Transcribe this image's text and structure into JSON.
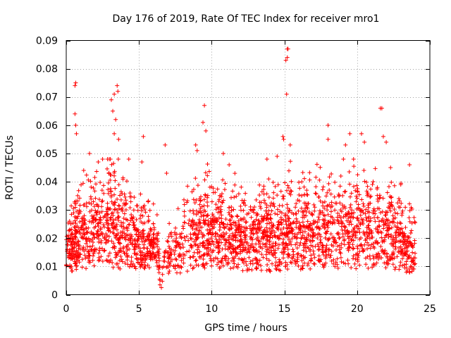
{
  "chart_data": {
    "type": "scatter",
    "title": "Day 176 of 2019, Rate Of TEC Index for receiver mro1",
    "xlabel": "GPS time / hours",
    "ylabel": "ROTI / TECUs",
    "xlim": [
      0,
      25
    ],
    "ylim": [
      0,
      0.09
    ],
    "xticks": [
      0,
      5,
      10,
      15,
      20,
      25
    ],
    "xtick_labels": [
      "0",
      "5",
      "10",
      "15",
      "20",
      "25"
    ],
    "yticks": [
      0,
      0.01,
      0.02,
      0.03,
      0.04,
      0.05,
      0.06,
      0.07,
      0.08,
      0.09
    ],
    "ytick_labels": [
      "0",
      "0.01",
      "0.02",
      "0.03",
      "0.04",
      "0.05",
      "0.06",
      "0.07",
      "0.08",
      "0.09"
    ],
    "grid": true,
    "marker": "plus",
    "color": "#ff0000",
    "density_profile": [
      {
        "x": 0.0,
        "y_center": 0.013,
        "y_spread": 0.008
      },
      {
        "x": 1.0,
        "y_center": 0.016,
        "y_spread": 0.012
      },
      {
        "x": 2.0,
        "y_center": 0.018,
        "y_spread": 0.013
      },
      {
        "x": 3.0,
        "y_center": 0.02,
        "y_spread": 0.016
      },
      {
        "x": 4.0,
        "y_center": 0.017,
        "y_spread": 0.014
      },
      {
        "x": 5.0,
        "y_center": 0.015,
        "y_spread": 0.01
      },
      {
        "x": 6.3,
        "y_center": 0.014,
        "y_spread": 0.008
      },
      {
        "x": 6.5,
        "y_center": 0.0,
        "y_spread": 0.0
      },
      {
        "x": 6.7,
        "y_center": 0.01,
        "y_spread": 0.005
      },
      {
        "x": 8.0,
        "y_center": 0.014,
        "y_spread": 0.01
      },
      {
        "x": 9.3,
        "y_center": 0.018,
        "y_spread": 0.014
      },
      {
        "x": 11.0,
        "y_center": 0.016,
        "y_spread": 0.012
      },
      {
        "x": 13.0,
        "y_center": 0.015,
        "y_spread": 0.011
      },
      {
        "x": 15.0,
        "y_center": 0.017,
        "y_spread": 0.014
      },
      {
        "x": 17.0,
        "y_center": 0.017,
        "y_spread": 0.013
      },
      {
        "x": 19.0,
        "y_center": 0.018,
        "y_spread": 0.014
      },
      {
        "x": 21.0,
        "y_center": 0.017,
        "y_spread": 0.013
      },
      {
        "x": 22.5,
        "y_center": 0.016,
        "y_spread": 0.012
      },
      {
        "x": 24.0,
        "y_center": 0.012,
        "y_spread": 0.008
      }
    ],
    "notable_points": [
      {
        "x": 0.6,
        "y": 0.074
      },
      {
        "x": 0.65,
        "y": 0.075
      },
      {
        "x": 0.6,
        "y": 0.064
      },
      {
        "x": 0.65,
        "y": 0.06
      },
      {
        "x": 0.7,
        "y": 0.057
      },
      {
        "x": 1.2,
        "y": 0.044
      },
      {
        "x": 1.6,
        "y": 0.05
      },
      {
        "x": 2.2,
        "y": 0.047
      },
      {
        "x": 2.5,
        "y": 0.048
      },
      {
        "x": 3.1,
        "y": 0.069
      },
      {
        "x": 3.2,
        "y": 0.065
      },
      {
        "x": 3.3,
        "y": 0.071
      },
      {
        "x": 3.5,
        "y": 0.074
      },
      {
        "x": 3.55,
        "y": 0.072
      },
      {
        "x": 3.4,
        "y": 0.062
      },
      {
        "x": 3.3,
        "y": 0.057
      },
      {
        "x": 3.6,
        "y": 0.055
      },
      {
        "x": 4.3,
        "y": 0.048
      },
      {
        "x": 5.3,
        "y": 0.056
      },
      {
        "x": 5.2,
        "y": 0.047
      },
      {
        "x": 6.8,
        "y": 0.053
      },
      {
        "x": 6.9,
        "y": 0.043
      },
      {
        "x": 8.9,
        "y": 0.053
      },
      {
        "x": 9.0,
        "y": 0.051
      },
      {
        "x": 9.5,
        "y": 0.067
      },
      {
        "x": 9.4,
        "y": 0.061
      },
      {
        "x": 9.6,
        "y": 0.058
      },
      {
        "x": 10.8,
        "y": 0.05
      },
      {
        "x": 11.2,
        "y": 0.046
      },
      {
        "x": 13.8,
        "y": 0.048
      },
      {
        "x": 14.5,
        "y": 0.049
      },
      {
        "x": 15.2,
        "y": 0.087
      },
      {
        "x": 15.25,
        "y": 0.087
      },
      {
        "x": 15.1,
        "y": 0.083
      },
      {
        "x": 15.2,
        "y": 0.084
      },
      {
        "x": 15.15,
        "y": 0.071
      },
      {
        "x": 14.9,
        "y": 0.056
      },
      {
        "x": 14.95,
        "y": 0.055
      },
      {
        "x": 15.4,
        "y": 0.053
      },
      {
        "x": 18.0,
        "y": 0.06
      },
      {
        "x": 18.0,
        "y": 0.055
      },
      {
        "x": 19.5,
        "y": 0.057
      },
      {
        "x": 19.2,
        "y": 0.053
      },
      {
        "x": 20.3,
        "y": 0.057
      },
      {
        "x": 20.5,
        "y": 0.054
      },
      {
        "x": 21.6,
        "y": 0.066
      },
      {
        "x": 21.7,
        "y": 0.066
      },
      {
        "x": 21.8,
        "y": 0.056
      },
      {
        "x": 22.0,
        "y": 0.054
      },
      {
        "x": 22.3,
        "y": 0.045
      },
      {
        "x": 23.0,
        "y": 0.039
      },
      {
        "x": 23.6,
        "y": 0.046
      }
    ]
  }
}
